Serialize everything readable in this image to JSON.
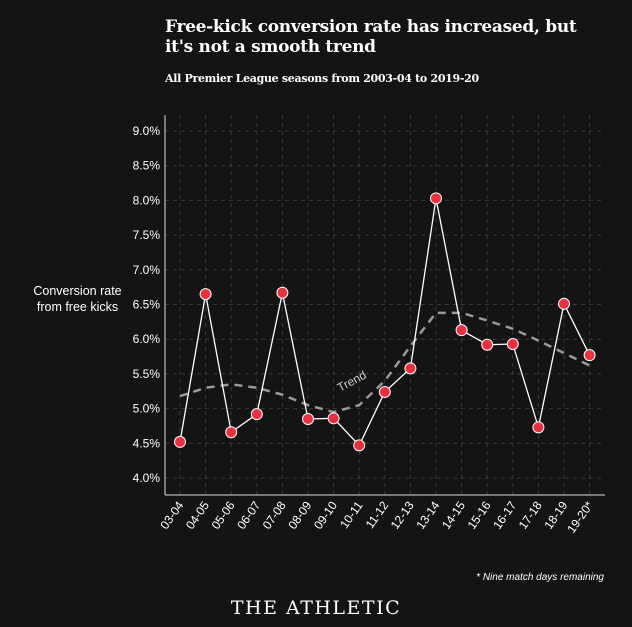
{
  "chart_data": {
    "type": "line",
    "title": "Free-kick conversion rate has increased, but it's not a smooth trend",
    "subtitle": "All Premier League seasons from 2003-04 to 2019-20",
    "ylabel": "Conversion rate from free kicks",
    "xlabel": "",
    "categories": [
      "03-04",
      "04-05",
      "05-06",
      "06-07",
      "07-08",
      "08-09",
      "09-10",
      "10-11",
      "11-12",
      "12-13",
      "13-14",
      "14-15",
      "15-16",
      "16-17",
      "17-18",
      "18-19",
      "19-20*"
    ],
    "ylim": [
      4.0,
      9.0
    ],
    "yticks": [
      "4.0%",
      "4.5%",
      "5.0%",
      "5.5%",
      "6.0%",
      "6.5%",
      "7.0%",
      "7.5%",
      "8.0%",
      "8.5%",
      "9.0%"
    ],
    "series": [
      {
        "name": "Conversion rate",
        "color": "#e8323f",
        "values": [
          4.52,
          6.65,
          4.66,
          4.92,
          6.67,
          4.85,
          4.86,
          4.47,
          5.24,
          5.58,
          8.03,
          6.13,
          5.92,
          5.93,
          4.73,
          6.51,
          5.77
        ]
      },
      {
        "name": "Trend",
        "color": "#9a9a9a",
        "style": "dashed",
        "values": [
          5.18,
          5.3,
          5.35,
          5.3,
          5.2,
          5.05,
          4.95,
          5.05,
          5.4,
          5.9,
          6.38,
          6.38,
          6.27,
          6.15,
          5.98,
          5.8,
          5.62
        ]
      }
    ],
    "annotations": [
      "Trend"
    ],
    "grid": true,
    "footnote": "* Nine match days remaining"
  },
  "brand": "THE ATHLETIC"
}
